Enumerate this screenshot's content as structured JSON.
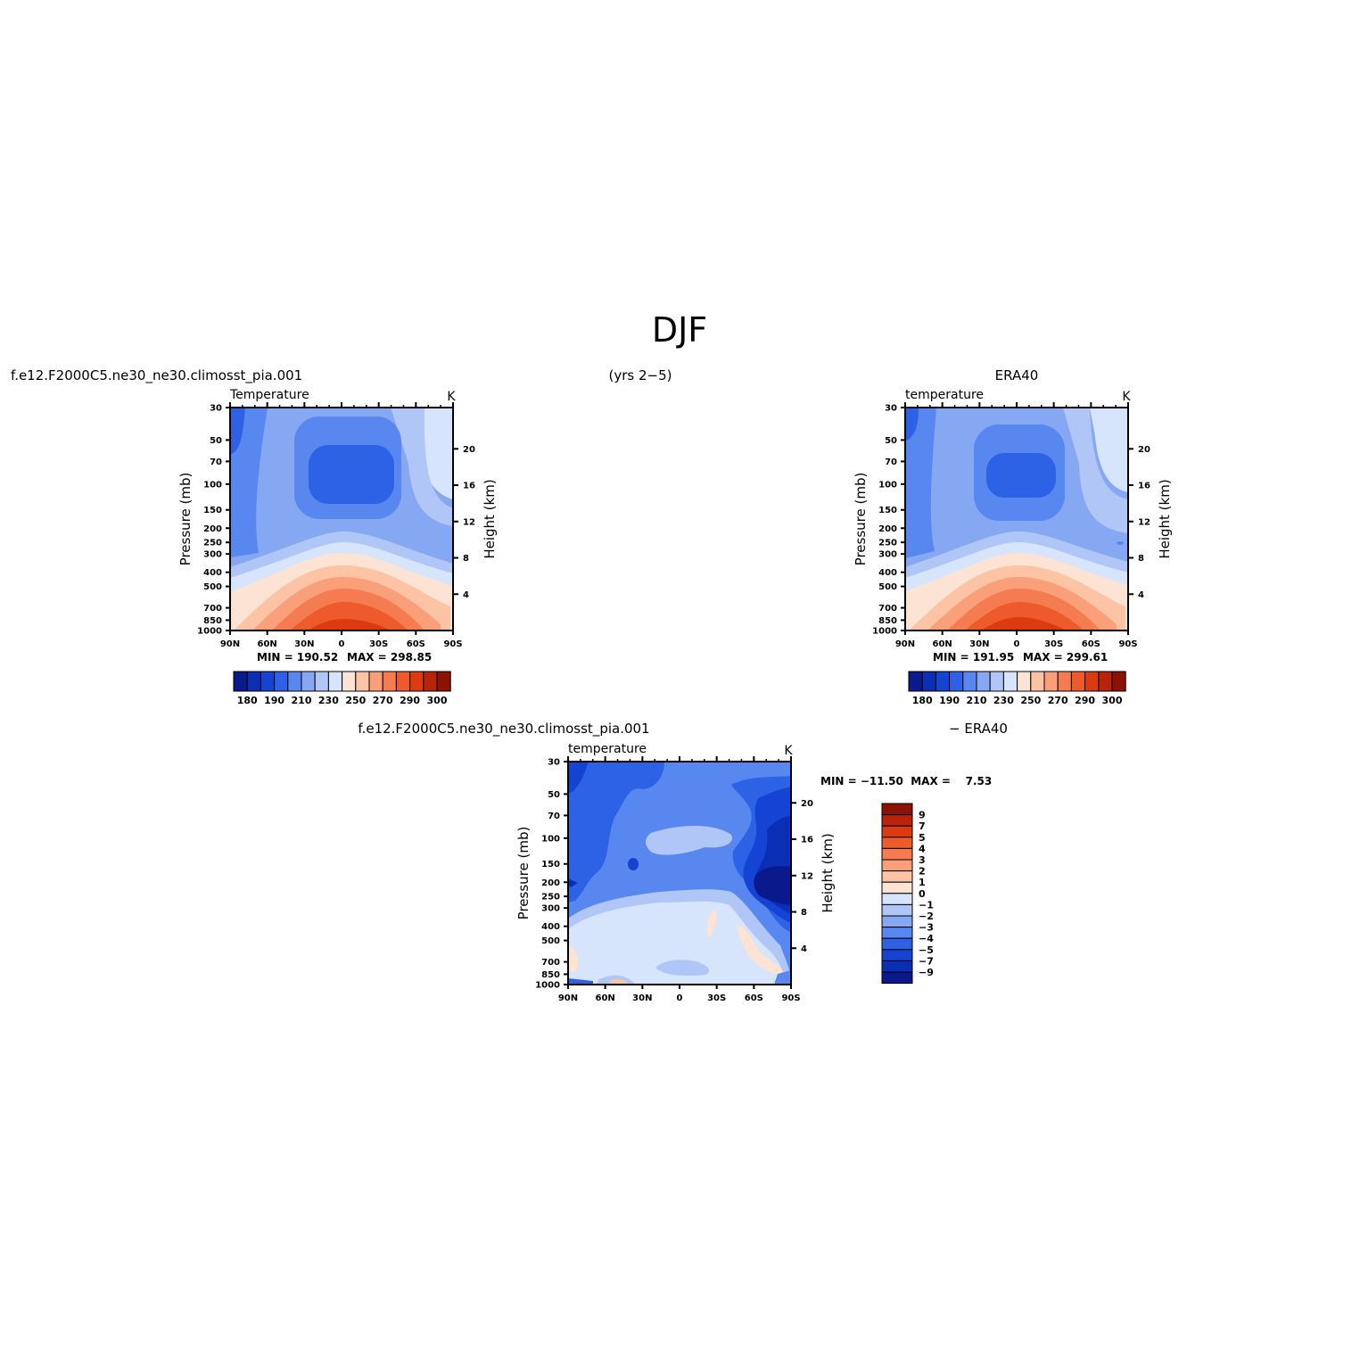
{
  "figure": {
    "title": "DJF",
    "top_left_header": "f.e12.F2000C5.ne30_ne30.climosst_pia.001",
    "top_center_header": "(yrs 2−5)",
    "top_right_header": "ERA40",
    "bottom_left_header": "f.e12.F2000C5.ne30_ne30.climosst_pia.001",
    "bottom_right_header": "− ERA40"
  },
  "chart_data": [
    {
      "type": "heatmap",
      "panel": "model",
      "variable": "Temperature",
      "units": "K",
      "ylabel": "Pressure (mb)",
      "ylabel2": "Height (km)",
      "x_ticks": [
        "90N",
        "60N",
        "30N",
        "0",
        "30S",
        "60S",
        "90S"
      ],
      "y_ticks": [
        30,
        50,
        70,
        100,
        150,
        200,
        250,
        300,
        400,
        500,
        700,
        850,
        1000
      ],
      "y2_ticks": [
        20,
        16,
        12,
        8,
        4
      ],
      "min_label": "MIN = 190.52",
      "max_label": "MAX = 298.85",
      "min": 190.52,
      "max": 298.85,
      "colorbar_levels": [
        180,
        185,
        190,
        200,
        210,
        220,
        230,
        240,
        250,
        260,
        270,
        280,
        290,
        295,
        300
      ],
      "colorbar_labels": [
        "180",
        "190",
        "210",
        "230",
        "250",
        "270",
        "290",
        "300"
      ],
      "colors": [
        "#0a1a8c",
        "#0a2fb5",
        "#1544d4",
        "#2e62e6",
        "#5887ef",
        "#86a8f2",
        "#b0c6f7",
        "#d6e5fb",
        "#fde3d4",
        "#fcc3a4",
        "#f9a07b",
        "#f57b50",
        "#ef5a2c",
        "#dc3a10",
        "#b72409",
        "#8c1204"
      ]
    },
    {
      "type": "heatmap",
      "panel": "obs",
      "variable": "temperature",
      "units": "K",
      "ylabel": "Pressure (mb)",
      "ylabel2": "Height (km)",
      "x_ticks": [
        "90N",
        "60N",
        "30N",
        "0",
        "30S",
        "60S",
        "90S"
      ],
      "y_ticks": [
        30,
        50,
        70,
        100,
        150,
        200,
        250,
        300,
        400,
        500,
        700,
        850,
        1000
      ],
      "y2_ticks": [
        20,
        16,
        12,
        8,
        4
      ],
      "min_label": "MIN = 191.95",
      "max_label": "MAX = 299.61",
      "min": 191.95,
      "max": 299.61,
      "colorbar_levels": [
        180,
        185,
        190,
        200,
        210,
        220,
        230,
        240,
        250,
        260,
        270,
        280,
        290,
        295,
        300
      ],
      "colorbar_labels": [
        "180",
        "190",
        "210",
        "230",
        "250",
        "270",
        "290",
        "300"
      ]
    },
    {
      "type": "heatmap",
      "panel": "difference",
      "variable": "temperature",
      "units": "K",
      "ylabel": "Pressure (mb)",
      "ylabel2": "Height (km)",
      "x_ticks": [
        "90N",
        "60N",
        "30N",
        "0",
        "30S",
        "60S",
        "90S"
      ],
      "y_ticks": [
        30,
        50,
        70,
        100,
        150,
        200,
        250,
        300,
        400,
        500,
        700,
        850,
        1000
      ],
      "y2_ticks": [
        20,
        16,
        12,
        8,
        4
      ],
      "stat_label": "MIN = −11.50  MAX =    7.53",
      "min": -11.5,
      "max": 7.53,
      "colorbar_levels": [
        9,
        7,
        5,
        4,
        3,
        2,
        1,
        0,
        -1,
        -2,
        -3,
        -4,
        -5,
        -7,
        -9
      ],
      "colorbar_labels": [
        "9",
        "7",
        "5",
        "4",
        "3",
        "2",
        "1",
        "0",
        "−1",
        "−2",
        "−3",
        "−4",
        "−5",
        "−7",
        "−9"
      ]
    }
  ]
}
